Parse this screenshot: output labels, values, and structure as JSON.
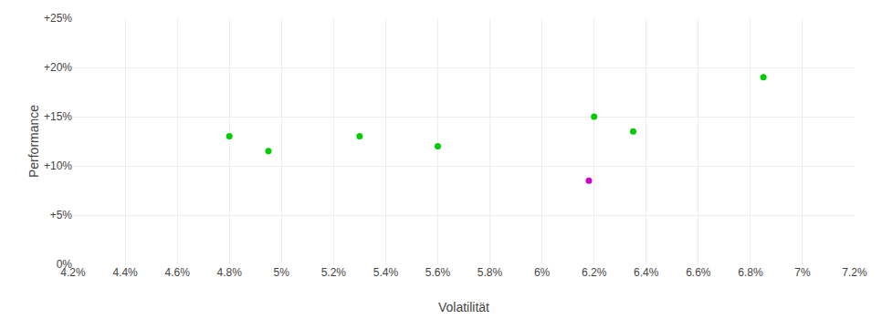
{
  "chart_data": {
    "type": "scatter",
    "xlabel": "Volatilität",
    "ylabel": "Performance",
    "series": [
      {
        "color": "#00cc00",
        "x": [
          0.048,
          0.0495,
          0.053,
          0.056,
          0.062,
          0.0635,
          0.0685
        ],
        "values": [
          0.13,
          0.115,
          0.13,
          0.12,
          0.15,
          0.135,
          0.19
        ]
      },
      {
        "color": "#cc00cc",
        "x": [
          0.0618
        ],
        "values": [
          0.085
        ]
      }
    ],
    "xlim": [
      0.042,
      0.072
    ],
    "ylim": [
      0.0,
      0.25
    ],
    "xticks": [
      {
        "value": 0.042,
        "label": "4.2%"
      },
      {
        "value": 0.044,
        "label": "4.4%"
      },
      {
        "value": 0.046,
        "label": "4.6%"
      },
      {
        "value": 0.048,
        "label": "4.8%"
      },
      {
        "value": 0.05,
        "label": "5%"
      },
      {
        "value": 0.052,
        "label": "5.2%"
      },
      {
        "value": 0.054,
        "label": "5.4%"
      },
      {
        "value": 0.056,
        "label": "5.6%"
      },
      {
        "value": 0.058,
        "label": "5.8%"
      },
      {
        "value": 0.06,
        "label": "6%"
      },
      {
        "value": 0.062,
        "label": "6.2%"
      },
      {
        "value": 0.064,
        "label": "6.4%"
      },
      {
        "value": 0.066,
        "label": "6.6%"
      },
      {
        "value": 0.068,
        "label": "6.8%"
      },
      {
        "value": 0.07,
        "label": "7%"
      },
      {
        "value": 0.072,
        "label": "7.2%"
      }
    ],
    "yticks": [
      {
        "value": 0.0,
        "label": "0%"
      },
      {
        "value": 0.05,
        "label": "+5%"
      },
      {
        "value": 0.1,
        "label": "+10%"
      },
      {
        "value": 0.15,
        "label": "+15%"
      },
      {
        "value": 0.2,
        "label": "+20%"
      },
      {
        "value": 0.25,
        "label": "+25%"
      }
    ],
    "grid": true
  }
}
